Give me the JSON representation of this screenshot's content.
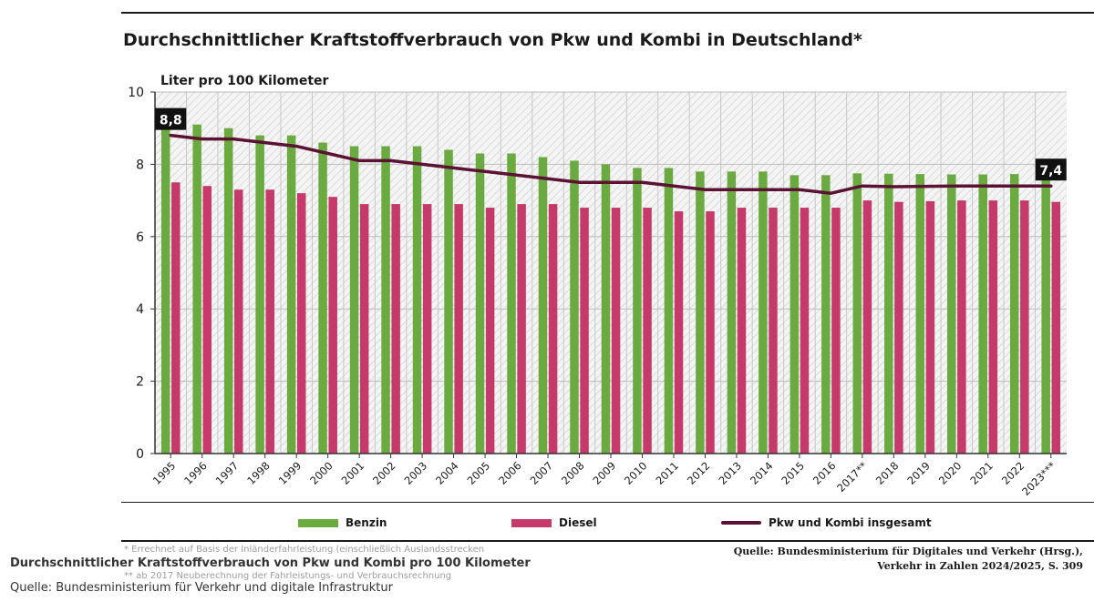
{
  "chart_data": {
    "type": "bar",
    "title": "Durchschnittlicher Kraftstoffverbrauch von Pkw und Kombi in Deutschland*",
    "ylabel": "Liter pro 100 Kilometer",
    "xlabel": "",
    "ylim": [
      0,
      10
    ],
    "yticks": [
      0,
      2,
      4,
      6,
      8,
      10
    ],
    "grid": true,
    "legend_position": "bottom",
    "categories": [
      "1995",
      "1996",
      "1997",
      "1998",
      "1999",
      "2000",
      "2001",
      "2002",
      "2003",
      "2004",
      "2005",
      "2006",
      "2007",
      "2008",
      "2009",
      "2010",
      "2011",
      "2012",
      "2013",
      "2014",
      "2015",
      "2016",
      "2017**",
      "2018",
      "2019",
      "2020",
      "2021",
      "2022",
      "2023***"
    ],
    "series": [
      {
        "name": "Benzin",
        "kind": "bar",
        "color": "#6aaa41",
        "values": [
          9.1,
          9.1,
          9.0,
          8.8,
          8.8,
          8.6,
          8.5,
          8.5,
          8.5,
          8.4,
          8.3,
          8.3,
          8.2,
          8.1,
          8.0,
          7.9,
          7.9,
          7.8,
          7.8,
          7.8,
          7.7,
          7.7,
          7.75,
          7.74,
          7.73,
          7.72,
          7.72,
          7.73,
          7.7
        ]
      },
      {
        "name": "Diesel",
        "kind": "bar",
        "color": "#c53a6a",
        "values": [
          7.5,
          7.4,
          7.3,
          7.3,
          7.2,
          7.1,
          6.9,
          6.9,
          6.9,
          6.9,
          6.8,
          6.9,
          6.9,
          6.8,
          6.8,
          6.8,
          6.7,
          6.7,
          6.8,
          6.8,
          6.8,
          6.8,
          7.0,
          6.96,
          6.98,
          7.0,
          7.0,
          7.0,
          6.96
        ]
      },
      {
        "name": "Pkw und Kombi insgesamt",
        "kind": "line",
        "color": "#5c1232",
        "values": [
          8.8,
          8.7,
          8.7,
          8.6,
          8.5,
          8.3,
          8.1,
          8.1,
          8.0,
          7.9,
          7.8,
          7.7,
          7.6,
          7.5,
          7.5,
          7.5,
          7.4,
          7.3,
          7.3,
          7.3,
          7.3,
          7.2,
          7.4,
          7.38,
          7.39,
          7.4,
          7.4,
          7.4,
          7.4
        ]
      }
    ],
    "annotations": [
      {
        "label": "8,8",
        "category": "1995",
        "value": 8.8
      },
      {
        "label": "7,4",
        "category": "2023***",
        "value": 7.4
      }
    ]
  },
  "legend": {
    "benzin": "Benzin",
    "diesel": "Diesel",
    "total": "Pkw und Kombi insgesamt"
  },
  "footnotes": {
    "note1": "* Errechnet auf Basis der Inländerfahrleistung (einschließlich Auslandsstrecken",
    "note2": "** ab 2017 Neuberechnung der Fahrleistungs- und Verbrauchsrechnung"
  },
  "source": {
    "line1": "Quelle: Bundesministerium für Digitales und Verkehr (Hrsg.),",
    "line2": "Verkehr in Zahlen 2024/2025, S. 309"
  },
  "caption": {
    "title": "Durchschnittlicher Kraftstoffverbrauch von Pkw und Kombi pro 100 Kilometer",
    "source": "Quelle: Bundesministerium für Verkehr und digitale Infrastruktur"
  }
}
